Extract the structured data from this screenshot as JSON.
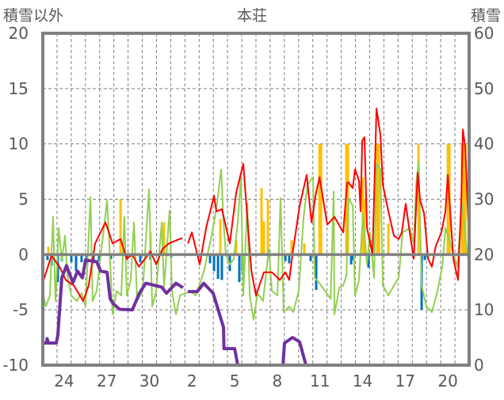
{
  "chart_data": {
    "type": "line",
    "title": "本荘",
    "ylabel_left": "積雪以外",
    "ylabel_right": "積雪",
    "ylim_left": [
      -10,
      20
    ],
    "ylim_right": [
      0,
      60
    ],
    "yticks_left": [
      "20",
      "15",
      "10",
      "5",
      "0",
      "-5",
      "-10"
    ],
    "yticks_left_values": [
      20,
      15,
      10,
      5,
      0,
      -5,
      -10
    ],
    "yticks_right": [
      "60",
      "50",
      "40",
      "30",
      "20",
      "10",
      "0"
    ],
    "yticks_right_values": [
      60,
      50,
      40,
      30,
      20,
      10,
      0
    ],
    "xlim_days": [
      0,
      30
    ],
    "xtick_labels": [
      "24",
      "27",
      "30",
      "2",
      "5",
      "8",
      "11",
      "14",
      "17",
      "20"
    ],
    "xtick_day_centers": [
      1.5,
      4.5,
      7.5,
      10.5,
      13.5,
      16.5,
      19.5,
      22.5,
      25.5,
      28.5
    ],
    "grid": true,
    "colors": {
      "red": "#FF0000",
      "green": "#92D050",
      "purple": "#7030A0",
      "orange": "#FFC000",
      "blue": "#0070C0",
      "axis": "#808080"
    },
    "series": [
      {
        "name": "red",
        "axis": "left",
        "points": [
          [
            0.06,
            -2.3
          ],
          [
            0.61,
            -0.1
          ],
          [
            1.17,
            -1.1
          ],
          [
            1.62,
            -2.3
          ],
          [
            2.18,
            -2.8
          ],
          [
            2.84,
            -4.2
          ],
          [
            3.23,
            -2.8
          ],
          [
            3.68,
            1
          ],
          [
            4.41,
            2.9
          ],
          [
            4.91,
            1
          ],
          [
            5.47,
            1.4
          ],
          [
            5.91,
            -0.4
          ],
          [
            6.3,
            0
          ],
          [
            6.75,
            -1.1
          ],
          [
            7.19,
            -0.4
          ],
          [
            7.58,
            0.3
          ],
          [
            7.98,
            -0.9
          ],
          [
            8.42,
            0.5
          ],
          [
            8.87,
            1
          ],
          [
            9.43,
            1.3
          ],
          [
            9.82,
            1.5
          ],
          [
            9.9,
            null
          ],
          [
            10.21,
            1
          ],
          [
            10.49,
            2
          ],
          [
            11.04,
            -0.9
          ],
          [
            11.49,
            2.4
          ],
          [
            12.05,
            5.3
          ],
          [
            12.21,
            3.9
          ],
          [
            12.6,
            4.1
          ],
          [
            13.16,
            1
          ],
          [
            13.61,
            5.6
          ],
          [
            14.11,
            8.2
          ],
          [
            14.67,
            -1.4
          ],
          [
            15.0,
            -3.7
          ],
          [
            15.56,
            -1.6
          ],
          [
            16.12,
            -1.6
          ],
          [
            16.68,
            -2.3
          ],
          [
            17.07,
            -1.6
          ],
          [
            17.34,
            -2.3
          ],
          [
            17.62,
            0.5
          ],
          [
            18.07,
            4.4
          ],
          [
            18.57,
            7.2
          ],
          [
            18.91,
            2.9
          ],
          [
            19.19,
            5.3
          ],
          [
            19.47,
            7
          ],
          [
            20.02,
            2.7
          ],
          [
            20.52,
            3.4
          ],
          [
            21.14,
            2
          ],
          [
            21.42,
            6.5
          ],
          [
            21.53,
            6.5
          ],
          [
            21.81,
            6
          ],
          [
            21.97,
            7.7
          ],
          [
            22.25,
            6.7
          ],
          [
            22.36,
            3.9
          ],
          [
            22.48,
            10.3
          ],
          [
            22.64,
            10.6
          ],
          [
            22.81,
            2.4
          ],
          [
            23.2,
            0
          ],
          [
            23.48,
            13.2
          ],
          [
            23.76,
            10.8
          ],
          [
            23.93,
            6.3
          ],
          [
            24.32,
            3.9
          ],
          [
            24.71,
            1.7
          ],
          [
            25.04,
            1.4
          ],
          [
            25.26,
            2
          ],
          [
            25.54,
            4.6
          ],
          [
            25.82,
            2
          ],
          [
            26.1,
            -0.4
          ],
          [
            26.38,
            7.4
          ],
          [
            26.55,
            4.9
          ],
          [
            26.83,
            3.7
          ],
          [
            27.11,
            -0.4
          ],
          [
            27.38,
            -1.1
          ],
          [
            27.66,
            0.8
          ],
          [
            28.05,
            2
          ],
          [
            28.33,
            3.9
          ],
          [
            28.5,
            7.2
          ],
          [
            28.67,
            3.9
          ],
          [
            28.89,
            -0.4
          ],
          [
            29.22,
            -2.3
          ],
          [
            29.45,
            4.9
          ],
          [
            29.56,
            11.3
          ],
          [
            29.73,
            9.6
          ],
          [
            30.0,
            1
          ]
        ]
      },
      {
        "name": "green",
        "axis": "left",
        "points": [
          [
            0,
            -3.5
          ],
          [
            0.22,
            -4.7
          ],
          [
            0.5,
            -3.7
          ],
          [
            0.72,
            3.4
          ],
          [
            0.89,
            -4.2
          ],
          [
            1.12,
            2.4
          ],
          [
            1.34,
            -0.6
          ],
          [
            1.56,
            1.7
          ],
          [
            1.73,
            -1.9
          ],
          [
            2.01,
            -3.7
          ],
          [
            2.4,
            -4.2
          ],
          [
            2.73,
            -3.5
          ],
          [
            3.01,
            -4.7
          ],
          [
            3.35,
            5.2
          ],
          [
            3.51,
            -4.2
          ],
          [
            3.79,
            -3.3
          ],
          [
            4.07,
            -0.1
          ],
          [
            4.35,
            2.9
          ],
          [
            4.52,
            4.9
          ],
          [
            4.68,
            1
          ],
          [
            4.91,
            -5.4
          ],
          [
            5.19,
            -3.3
          ],
          [
            5.52,
            -3.7
          ],
          [
            5.74,
            3.4
          ],
          [
            5.91,
            -3.7
          ],
          [
            6.19,
            -2.3
          ],
          [
            6.41,
            2.9
          ],
          [
            6.64,
            -4.2
          ],
          [
            7.03,
            -3.3
          ],
          [
            7.47,
            5.9
          ],
          [
            7.7,
            -4.7
          ],
          [
            7.98,
            -3.3
          ],
          [
            8.37,
            2.9
          ],
          [
            8.53,
            -3
          ],
          [
            8.92,
            4
          ],
          [
            9.09,
            -3.3
          ],
          [
            9.37,
            -5.4
          ],
          [
            9.65,
            -3.7
          ],
          [
            10.37,
            -3.3
          ],
          [
            10.76,
            -3.7
          ],
          [
            11.32,
            -1.6
          ],
          [
            11.88,
            1.7
          ],
          [
            12.21,
            4.1
          ],
          [
            12.55,
            7.7
          ],
          [
            12.72,
            2.9
          ],
          [
            12.88,
            0
          ],
          [
            13.16,
            -0.9
          ],
          [
            13.44,
            -0.4
          ],
          [
            13.72,
            2.9
          ],
          [
            13.94,
            7
          ],
          [
            14.11,
            -3.7
          ],
          [
            14.39,
            4.6
          ],
          [
            14.56,
            -3.7
          ],
          [
            14.84,
            -5.9
          ],
          [
            15.11,
            -3.5
          ],
          [
            15.5,
            -4.2
          ],
          [
            15.9,
            0.5
          ],
          [
            16.12,
            -3.3
          ],
          [
            16.51,
            -3.7
          ],
          [
            16.73,
            5.1
          ],
          [
            16.95,
            -5.2
          ],
          [
            17.34,
            -4.7
          ],
          [
            17.62,
            -5.2
          ],
          [
            18.01,
            -3.3
          ],
          [
            18.35,
            3.4
          ],
          [
            18.63,
            6.3
          ],
          [
            19.02,
            7
          ],
          [
            19.13,
            -2.1
          ],
          [
            19.47,
            -2.6
          ],
          [
            19.86,
            -3.3
          ],
          [
            20.25,
            -4
          ],
          [
            20.47,
            5.7
          ],
          [
            20.52,
            -5.4
          ],
          [
            20.86,
            -3
          ],
          [
            21.14,
            -2.8
          ],
          [
            21.36,
            -1.9
          ],
          [
            21.53,
            5.1
          ],
          [
            21.81,
            4.4
          ],
          [
            21.97,
            -3.7
          ],
          [
            22.25,
            -2.3
          ],
          [
            22.53,
            3.7
          ],
          [
            22.81,
            -0.9
          ],
          [
            23.03,
            2
          ],
          [
            23.31,
            -2.1
          ],
          [
            23.48,
            8.2
          ],
          [
            23.76,
            7.7
          ],
          [
            23.93,
            -2.8
          ],
          [
            24.32,
            -3.7
          ],
          [
            24.71,
            -2.8
          ],
          [
            25.04,
            -2.1
          ],
          [
            25.32,
            2
          ],
          [
            25.82,
            2.4
          ],
          [
            26.1,
            1
          ],
          [
            26.27,
            6.3
          ],
          [
            26.44,
            8.4
          ],
          [
            26.66,
            -2.8
          ],
          [
            26.99,
            -4.7
          ],
          [
            27.38,
            -5.2
          ],
          [
            27.77,
            -3.3
          ],
          [
            28.11,
            -1.1
          ],
          [
            28.33,
            2.4
          ],
          [
            28.67,
            1
          ],
          [
            29.17,
            -1.1
          ],
          [
            29.5,
            4.6
          ],
          [
            29.79,
            1
          ],
          [
            30,
            -1.1
          ]
        ]
      },
      {
        "name": "purple",
        "axis": "right",
        "points": [
          [
            0,
            4
          ],
          [
            0.28,
            4
          ],
          [
            0.3,
            4.8
          ],
          [
            0.4,
            4
          ],
          [
            0.95,
            4
          ],
          [
            1.06,
            5.4
          ],
          [
            1.34,
            15.8
          ],
          [
            1.67,
            18
          ],
          [
            2.12,
            14.9
          ],
          [
            2.45,
            17
          ],
          [
            2.79,
            15.8
          ],
          [
            3.01,
            19
          ],
          [
            3.79,
            18.7
          ],
          [
            4.07,
            17
          ],
          [
            4.52,
            16.8
          ],
          [
            4.74,
            12
          ],
          [
            4.96,
            11.1
          ],
          [
            5.41,
            10.1
          ],
          [
            6.3,
            10
          ],
          [
            6.8,
            13
          ],
          [
            7.25,
            14.8
          ],
          [
            8.37,
            14.1
          ],
          [
            8.7,
            13
          ],
          [
            9.37,
            14.8
          ],
          [
            9.87,
            14
          ],
          [
            9.95,
            null
          ],
          [
            10.21,
            13.3
          ],
          [
            10.88,
            13.3
          ],
          [
            11.32,
            14.8
          ],
          [
            11.99,
            13
          ],
          [
            12.72,
            6.8
          ],
          [
            12.75,
            3
          ],
          [
            13.5,
            3
          ],
          [
            13.72,
            0
          ],
          [
            16.9,
            0
          ],
          [
            17.01,
            4
          ],
          [
            17.57,
            5
          ],
          [
            18.07,
            4.2
          ],
          [
            18.52,
            0
          ],
          [
            30,
            0
          ]
        ]
      }
    ],
    "bars_positive": {
      "name": "orange",
      "axis": "left",
      "points": [
        [
          0.39,
          0.7
        ],
        [
          5.47,
          5
        ],
        [
          7.58,
          2
        ],
        [
          8.53,
          2.9
        ],
        [
          12.49,
          3.2
        ],
        [
          13.61,
          1.3
        ],
        [
          15.39,
          6
        ],
        [
          15.56,
          3
        ],
        [
          15.84,
          5
        ],
        [
          17.51,
          1.3
        ],
        [
          18.4,
          1
        ],
        [
          19.47,
          10
        ],
        [
          19.58,
          10
        ],
        [
          21.36,
          10
        ],
        [
          21.47,
          10
        ],
        [
          22.53,
          7
        ],
        [
          22.64,
          5
        ],
        [
          23.54,
          10
        ],
        [
          23.65,
          10
        ],
        [
          24.32,
          2.8
        ],
        [
          26.44,
          10
        ],
        [
          28.5,
          10
        ],
        [
          28.61,
          10
        ],
        [
          29.5,
          10
        ],
        [
          29.62,
          10
        ],
        [
          29.73,
          10
        ]
      ]
    },
    "bars_negative": {
      "name": "blue",
      "axis": "left",
      "points": [
        [
          0.33,
          -0.5
        ],
        [
          0.61,
          -1
        ],
        [
          1.06,
          -2.5
        ],
        [
          1.34,
          -0.6
        ],
        [
          2.01,
          -0.7
        ],
        [
          2.34,
          -1.5
        ],
        [
          2.73,
          -0.7
        ],
        [
          3.12,
          -0.9
        ],
        [
          3.57,
          -0.8
        ],
        [
          3.96,
          -0.6
        ],
        [
          4.8,
          -0.4
        ],
        [
          5.91,
          -0.5
        ],
        [
          6.86,
          -0.7
        ],
        [
          7.58,
          -0.5
        ],
        [
          9.03,
          -0.3
        ],
        [
          11.77,
          -0.8
        ],
        [
          12.05,
          -1.5
        ],
        [
          12.33,
          -2.2
        ],
        [
          12.6,
          -2.3
        ],
        [
          13.16,
          -1.5
        ],
        [
          13.83,
          -2.5
        ],
        [
          14.05,
          -1.5
        ],
        [
          17.07,
          -0.6
        ],
        [
          17.34,
          -0.8
        ],
        [
          18.85,
          -0.6
        ],
        [
          19.24,
          -3.2
        ],
        [
          21.7,
          -0.9
        ],
        [
          21.81,
          -0.5
        ],
        [
          22.92,
          -1.2
        ],
        [
          26.66,
          -5
        ],
        [
          26.88,
          -0.5
        ]
      ]
    }
  }
}
